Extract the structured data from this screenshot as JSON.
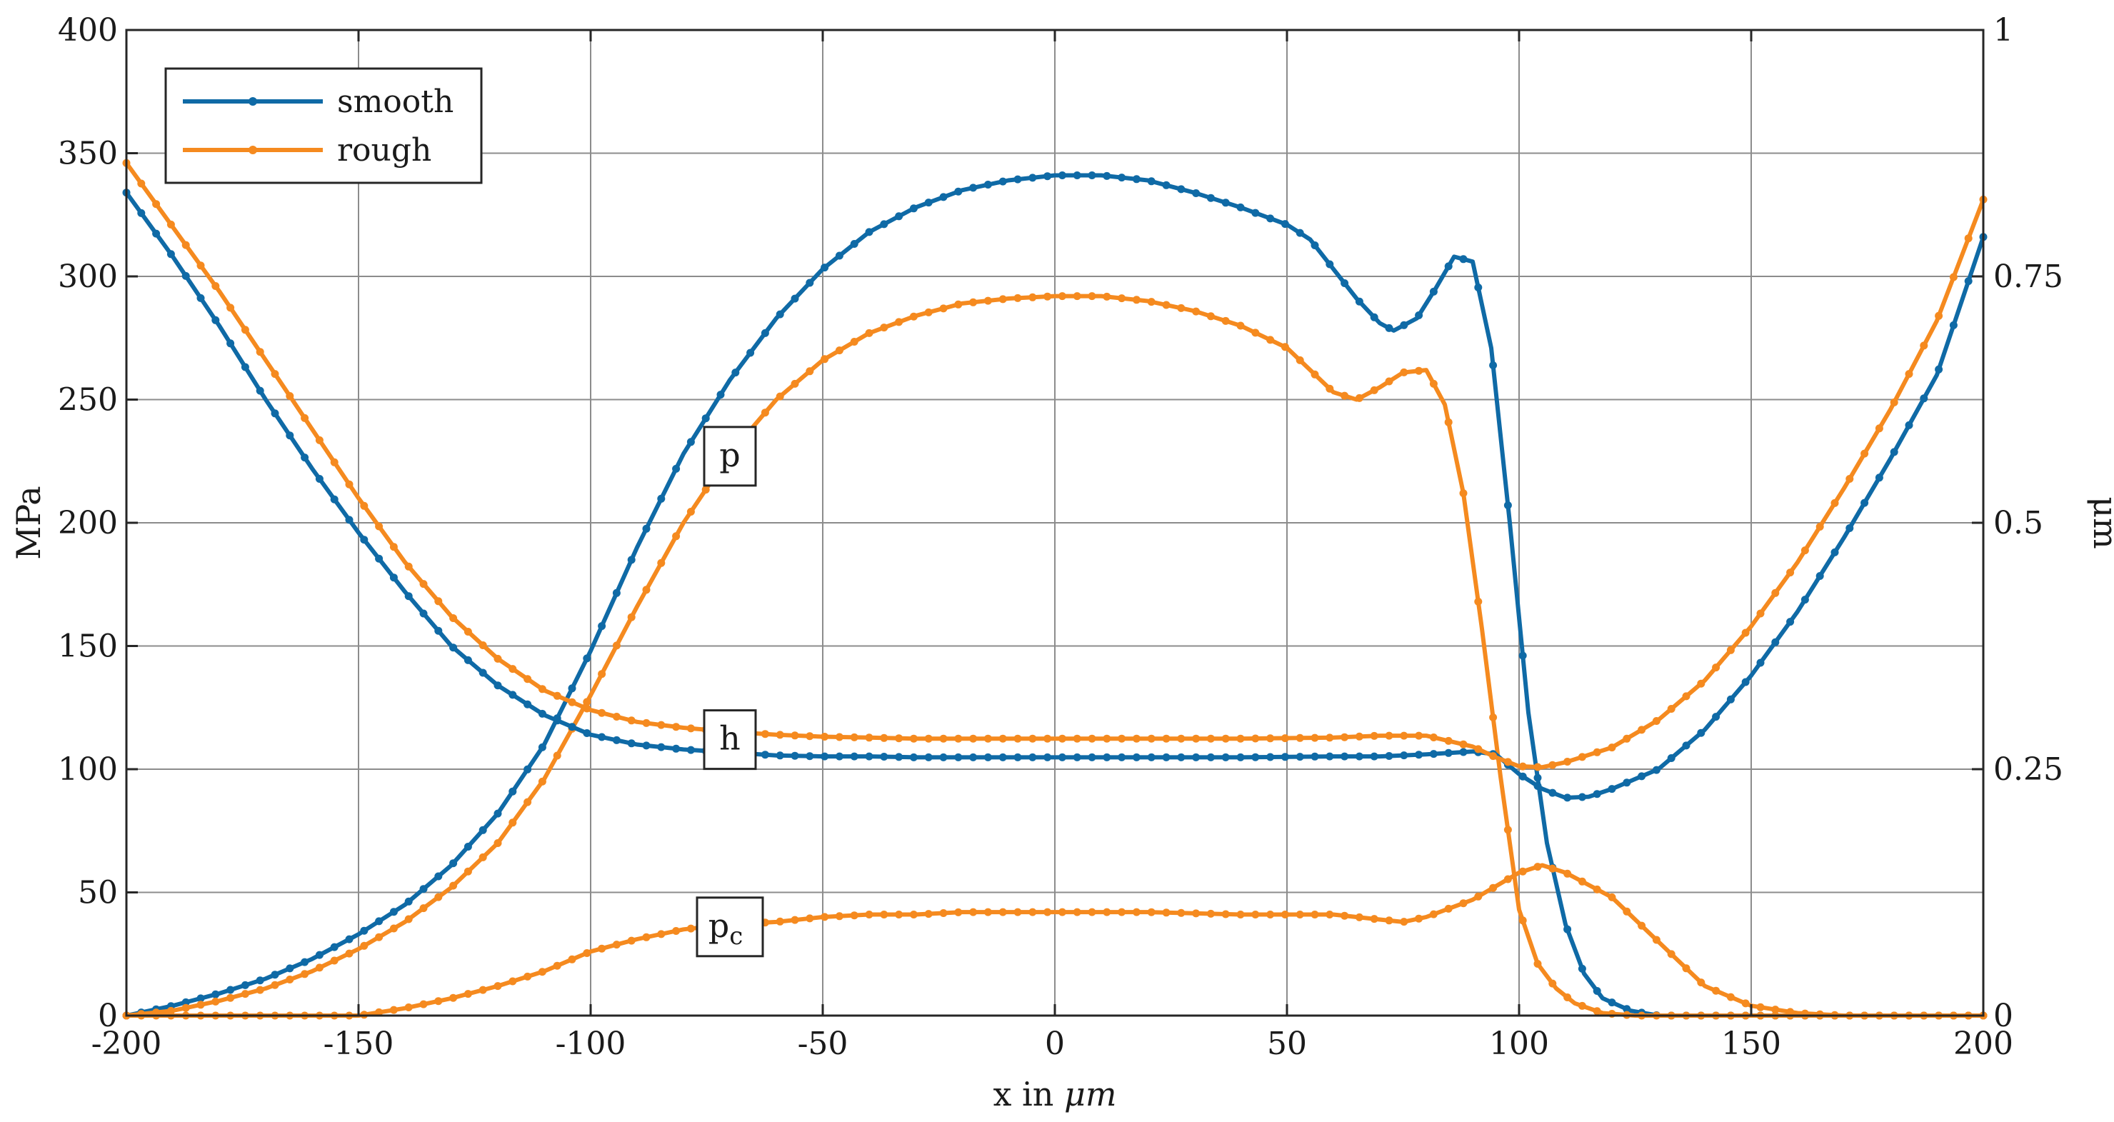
{
  "chart_data": {
    "type": "line",
    "x_axis": {
      "label_prefix": "x in",
      "label_unit": "μm",
      "range": [
        -200,
        200
      ],
      "ticks": [
        -200,
        -150,
        -100,
        -50,
        0,
        50,
        100,
        150,
        200
      ]
    },
    "y_left": {
      "label": "MPa",
      "range": [
        0,
        400
      ],
      "ticks": [
        0,
        50,
        100,
        150,
        200,
        250,
        300,
        350,
        400
      ]
    },
    "y_right": {
      "label": "μm",
      "range": [
        0,
        1
      ],
      "ticks": [
        0,
        0.25,
        0.5,
        0.75,
        1
      ],
      "tick_labels": [
        "0",
        "0.25",
        "0.5",
        "0.75",
        "1"
      ]
    },
    "grid": true,
    "legend": {
      "placement": "top-left",
      "entries": [
        {
          "label": "smooth",
          "color": "#0f6aa6"
        },
        {
          "label": "rough",
          "color": "#f58a1f"
        }
      ]
    },
    "curve_labels": [
      {
        "text": "p",
        "x": -70,
        "y": 227
      },
      {
        "text": "h",
        "x": -70,
        "y": 112
      },
      {
        "text": "p",
        "subscript": "c",
        "x": -70,
        "y": 36
      }
    ],
    "series": [
      {
        "name": "smooth",
        "quantity": "p",
        "axis": "left",
        "color": "#0f6aa6",
        "points": [
          [
            -200,
            0
          ],
          [
            -190,
            4
          ],
          [
            -180,
            9
          ],
          [
            -170,
            15
          ],
          [
            -160,
            23
          ],
          [
            -150,
            33
          ],
          [
            -140,
            45
          ],
          [
            -130,
            61
          ],
          [
            -120,
            82
          ],
          [
            -110,
            110
          ],
          [
            -100,
            148
          ],
          [
            -90,
            190
          ],
          [
            -80,
            228
          ],
          [
            -70,
            258
          ],
          [
            -60,
            283
          ],
          [
            -50,
            303
          ],
          [
            -40,
            318
          ],
          [
            -30,
            328
          ],
          [
            -20,
            335
          ],
          [
            -10,
            339
          ],
          [
            0,
            341
          ],
          [
            10,
            341
          ],
          [
            20,
            339
          ],
          [
            30,
            334
          ],
          [
            40,
            328
          ],
          [
            50,
            321
          ],
          [
            55,
            315
          ],
          [
            60,
            303
          ],
          [
            65,
            291
          ],
          [
            70,
            281
          ],
          [
            73,
            278
          ],
          [
            78,
            283
          ],
          [
            82,
            295
          ],
          [
            86,
            308
          ],
          [
            90,
            306
          ],
          [
            94,
            271
          ],
          [
            98,
            200
          ],
          [
            102,
            123
          ],
          [
            106,
            70
          ],
          [
            110,
            37
          ],
          [
            114,
            17
          ],
          [
            118,
            7
          ],
          [
            124,
            2
          ],
          [
            130,
            0
          ],
          [
            150,
            0
          ],
          [
            200,
            0
          ]
        ]
      },
      {
        "name": "rough",
        "quantity": "p",
        "axis": "left",
        "color": "#f58a1f",
        "points": [
          [
            -200,
            0
          ],
          [
            -190,
            2
          ],
          [
            -180,
            6
          ],
          [
            -170,
            11
          ],
          [
            -160,
            18
          ],
          [
            -150,
            27
          ],
          [
            -140,
            38
          ],
          [
            -130,
            52
          ],
          [
            -120,
            70
          ],
          [
            -110,
            96
          ],
          [
            -100,
            130
          ],
          [
            -90,
            166
          ],
          [
            -80,
            200
          ],
          [
            -70,
            228
          ],
          [
            -60,
            250
          ],
          [
            -50,
            266
          ],
          [
            -40,
            277
          ],
          [
            -30,
            284
          ],
          [
            -20,
            289
          ],
          [
            -10,
            291
          ],
          [
            0,
            292
          ],
          [
            10,
            292
          ],
          [
            20,
            290
          ],
          [
            30,
            286
          ],
          [
            40,
            280
          ],
          [
            50,
            271
          ],
          [
            55,
            262
          ],
          [
            60,
            253
          ],
          [
            65,
            250
          ],
          [
            70,
            255
          ],
          [
            75,
            261
          ],
          [
            80,
            262
          ],
          [
            84,
            248
          ],
          [
            88,
            212
          ],
          [
            92,
            157
          ],
          [
            96,
            97
          ],
          [
            100,
            43
          ],
          [
            104,
            21
          ],
          [
            108,
            11
          ],
          [
            112,
            5
          ],
          [
            118,
            1
          ],
          [
            125,
            0
          ],
          [
            150,
            0
          ],
          [
            200,
            0
          ]
        ]
      },
      {
        "name": "smooth",
        "quantity": "h",
        "axis": "right",
        "color": "#0f6aa6",
        "points": [
          [
            -200,
            0.835
          ],
          [
            -190,
            0.77
          ],
          [
            -180,
            0.7
          ],
          [
            -170,
            0.625
          ],
          [
            -160,
            0.555
          ],
          [
            -150,
            0.49
          ],
          [
            -140,
            0.43
          ],
          [
            -130,
            0.375
          ],
          [
            -120,
            0.335
          ],
          [
            -110,
            0.305
          ],
          [
            -100,
            0.285
          ],
          [
            -90,
            0.275
          ],
          [
            -80,
            0.27
          ],
          [
            -70,
            0.267
          ],
          [
            -60,
            0.264
          ],
          [
            -50,
            0.263
          ],
          [
            -40,
            0.263
          ],
          [
            -30,
            0.262
          ],
          [
            -20,
            0.262
          ],
          [
            -10,
            0.262
          ],
          [
            0,
            0.262
          ],
          [
            20,
            0.262
          ],
          [
            40,
            0.262
          ],
          [
            60,
            0.263
          ],
          [
            70,
            0.263
          ],
          [
            80,
            0.265
          ],
          [
            90,
            0.268
          ],
          [
            95,
            0.265
          ],
          [
            100,
            0.245
          ],
          [
            105,
            0.23
          ],
          [
            110,
            0.221
          ],
          [
            115,
            0.222
          ],
          [
            120,
            0.23
          ],
          [
            130,
            0.25
          ],
          [
            140,
            0.29
          ],
          [
            150,
            0.345
          ],
          [
            160,
            0.41
          ],
          [
            170,
            0.485
          ],
          [
            180,
            0.565
          ],
          [
            190,
            0.65
          ],
          [
            200,
            0.79
          ]
        ]
      },
      {
        "name": "rough",
        "quantity": "h",
        "axis": "right",
        "color": "#f58a1f",
        "points": [
          [
            -200,
            0.865
          ],
          [
            -190,
            0.8
          ],
          [
            -180,
            0.735
          ],
          [
            -170,
            0.665
          ],
          [
            -160,
            0.595
          ],
          [
            -150,
            0.525
          ],
          [
            -140,
            0.46
          ],
          [
            -130,
            0.405
          ],
          [
            -120,
            0.362
          ],
          [
            -110,
            0.33
          ],
          [
            -100,
            0.31
          ],
          [
            -90,
            0.298
          ],
          [
            -80,
            0.292
          ],
          [
            -70,
            0.288
          ],
          [
            -60,
            0.285
          ],
          [
            -50,
            0.283
          ],
          [
            -40,
            0.282
          ],
          [
            -30,
            0.281
          ],
          [
            -20,
            0.281
          ],
          [
            -10,
            0.281
          ],
          [
            0,
            0.281
          ],
          [
            20,
            0.281
          ],
          [
            40,
            0.281
          ],
          [
            60,
            0.282
          ],
          [
            70,
            0.284
          ],
          [
            80,
            0.284
          ],
          [
            90,
            0.273
          ],
          [
            95,
            0.262
          ],
          [
            100,
            0.253
          ],
          [
            105,
            0.252
          ],
          [
            110,
            0.257
          ],
          [
            120,
            0.272
          ],
          [
            130,
            0.3
          ],
          [
            140,
            0.34
          ],
          [
            150,
            0.395
          ],
          [
            160,
            0.46
          ],
          [
            170,
            0.535
          ],
          [
            180,
            0.615
          ],
          [
            190,
            0.705
          ],
          [
            200,
            0.828
          ]
        ]
      },
      {
        "name": "rough",
        "quantity": "pc",
        "axis": "left",
        "color": "#f58a1f",
        "points": [
          [
            -200,
            0
          ],
          [
            -170,
            0
          ],
          [
            -160,
            0
          ],
          [
            -150,
            0
          ],
          [
            -140,
            3
          ],
          [
            -130,
            7
          ],
          [
            -120,
            12
          ],
          [
            -110,
            18
          ],
          [
            -100,
            26
          ],
          [
            -90,
            31
          ],
          [
            -80,
            35
          ],
          [
            -70,
            37
          ],
          [
            -60,
            38
          ],
          [
            -50,
            40
          ],
          [
            -40,
            41
          ],
          [
            -30,
            41
          ],
          [
            -20,
            42
          ],
          [
            -10,
            42
          ],
          [
            0,
            42
          ],
          [
            20,
            42
          ],
          [
            40,
            41
          ],
          [
            60,
            41
          ],
          [
            70,
            39
          ],
          [
            75,
            38
          ],
          [
            80,
            40
          ],
          [
            90,
            47
          ],
          [
            100,
            58
          ],
          [
            105,
            61
          ],
          [
            110,
            58
          ],
          [
            120,
            48
          ],
          [
            130,
            30
          ],
          [
            140,
            12
          ],
          [
            150,
            4
          ],
          [
            160,
            1
          ],
          [
            170,
            0
          ],
          [
            200,
            0
          ]
        ]
      }
    ]
  }
}
